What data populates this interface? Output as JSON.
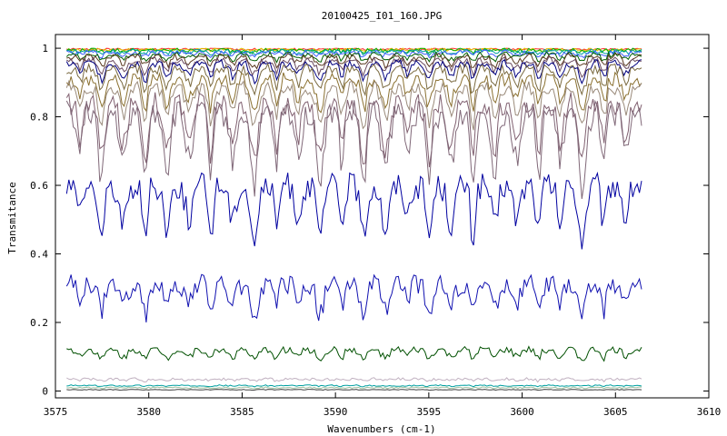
{
  "chart_data": {
    "type": "line",
    "title": "20100425_I01_160.JPG",
    "xlabel": "Wavenumbers (cm-1)",
    "ylabel": "Transmitance",
    "xlim": [
      3575,
      3610
    ],
    "ylim": [
      -0.02,
      1.04
    ],
    "xticks": [
      3575,
      3580,
      3585,
      3590,
      3595,
      3600,
      3605,
      3610
    ],
    "yticks": [
      0,
      0.2,
      0.4,
      0.6,
      0.8,
      1
    ],
    "ytick_labels": [
      "0",
      "0.2",
      "0.4",
      "0.6",
      "0.8",
      "1"
    ],
    "x_range_of_data": [
      3575.6,
      3606.4
    ],
    "grid": false,
    "legend": "none",
    "series": [
      {
        "color": "#ff3030",
        "base": 0.998,
        "amp": 0.004,
        "depth": 0.0
      },
      {
        "color": "#e0c000",
        "base": 0.997,
        "amp": 0.005,
        "depth": 0.003
      },
      {
        "color": "#00b000",
        "base": 0.995,
        "amp": 0.006,
        "depth": 0.005
      },
      {
        "color": "#00a0a0",
        "base": 0.992,
        "amp": 0.006,
        "depth": 0.008
      },
      {
        "color": "#4060ff",
        "base": 0.988,
        "amp": 0.007,
        "depth": 0.012
      },
      {
        "color": "#006000",
        "base": 0.982,
        "amp": 0.008,
        "depth": 0.02
      },
      {
        "color": "#5a3a20",
        "base": 0.975,
        "amp": 0.01,
        "depth": 0.03
      },
      {
        "color": "#6a4a60",
        "base": 0.965,
        "amp": 0.01,
        "depth": 0.04
      },
      {
        "color": "#000080",
        "base": 0.955,
        "amp": 0.012,
        "depth": 0.05
      },
      {
        "color": "#7a6a40",
        "base": 0.94,
        "amp": 0.015,
        "depth": 0.07
      },
      {
        "color": "#8a7030",
        "base": 0.91,
        "amp": 0.02,
        "depth": 0.09
      },
      {
        "color": "#9a8a7a",
        "base": 0.885,
        "amp": 0.02,
        "depth": 0.11
      },
      {
        "color": "#806070",
        "base": 0.84,
        "amp": 0.035,
        "depth": 0.18
      },
      {
        "color": "#806878",
        "base": 0.81,
        "amp": 0.04,
        "depth": 0.21
      },
      {
        "color": "#0000a0",
        "base": 0.6,
        "amp": 0.04,
        "depth": 0.16
      },
      {
        "color": "#1010b0",
        "base": 0.31,
        "amp": 0.03,
        "depth": 0.09
      },
      {
        "color": "#005000",
        "base": 0.12,
        "amp": 0.01,
        "depth": 0.03
      },
      {
        "color": "#c0b0c0",
        "base": 0.035,
        "amp": 0.004,
        "depth": 0.006
      },
      {
        "color": "#00a0a0",
        "base": 0.016,
        "amp": 0.002,
        "depth": 0.002
      },
      {
        "color": "#a0c0a0",
        "base": 0.01,
        "amp": 0.002,
        "depth": 0.002
      },
      {
        "color": "#404040",
        "base": 0.004,
        "amp": 0.001,
        "depth": 0.001
      }
    ]
  }
}
